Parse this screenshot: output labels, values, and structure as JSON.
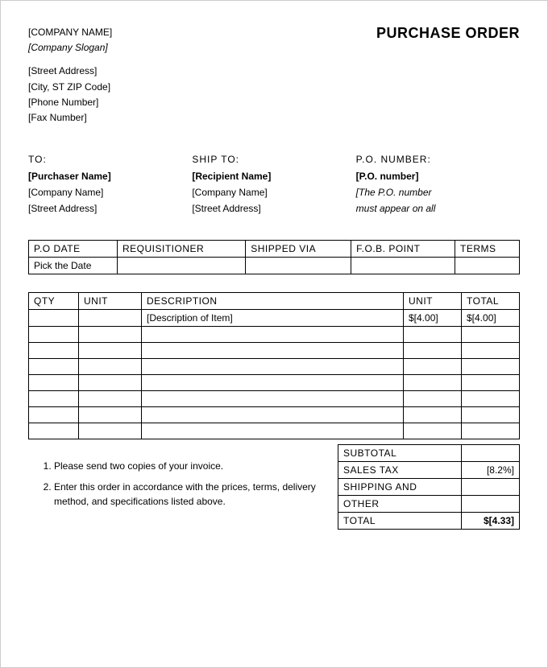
{
  "header": {
    "company_name": "[COMPANY NAME]",
    "slogan": "[Company Slogan]",
    "street": "[Street Address]",
    "city_st_zip": "[City, ST ZIP Code]",
    "phone": "[Phone Number]",
    "fax": "[Fax Number]",
    "title": "PURCHASE ORDER"
  },
  "to": {
    "label": "TO:",
    "name": "[Purchaser Name]",
    "company": "[Company Name]",
    "street": "[Street Address]"
  },
  "ship_to": {
    "label": "SHIP TO:",
    "name": "[Recipient Name]",
    "company": "[Company Name]",
    "street": "[Street Address]"
  },
  "po_number": {
    "label": "P.O. NUMBER:",
    "value": "[P.O. number]",
    "note1": "[The P.O. number",
    "note2": "must appear on all"
  },
  "meta": {
    "headers": {
      "date": "P.O DATE",
      "req": "REQUISITIONER",
      "shipped": "SHIPPED VIA",
      "fob": "F.O.B. POINT",
      "terms": "TERMS"
    },
    "values": {
      "date": "Pick the Date",
      "req": "",
      "shipped": "",
      "fob": "",
      "terms": ""
    }
  },
  "items": {
    "headers": {
      "qty": "QTY",
      "unit": "UNIT",
      "desc": "DESCRIPTION",
      "unitprice": "UNIT",
      "total": "TOTAL"
    },
    "rows": [
      {
        "qty": "",
        "unit": "",
        "desc": "[Description of Item]",
        "unitprice": "$[4.00]",
        "total": "$[4.00]"
      },
      {
        "qty": "",
        "unit": "",
        "desc": "",
        "unitprice": "",
        "total": ""
      },
      {
        "qty": "",
        "unit": "",
        "desc": "",
        "unitprice": "",
        "total": ""
      },
      {
        "qty": "",
        "unit": "",
        "desc": "",
        "unitprice": "",
        "total": ""
      },
      {
        "qty": "",
        "unit": "",
        "desc": "",
        "unitprice": "",
        "total": ""
      },
      {
        "qty": "",
        "unit": "",
        "desc": "",
        "unitprice": "",
        "total": ""
      },
      {
        "qty": "",
        "unit": "",
        "desc": "",
        "unitprice": "",
        "total": ""
      },
      {
        "qty": "",
        "unit": "",
        "desc": "",
        "unitprice": "",
        "total": ""
      }
    ]
  },
  "totals": {
    "subtotal_label": "SUBTOTAL",
    "subtotal_value": "",
    "tax_label": "SALES TAX",
    "tax_value": "[8.2%]",
    "shipping_label": "SHIPPING AND",
    "shipping_value": "",
    "other_label": "OTHER",
    "other_value": "",
    "total_label": "TOTAL",
    "total_value": "$[4.33]"
  },
  "notes": {
    "line1": "Please send two copies of your invoice.",
    "line2": "Enter this order in accordance with the prices, terms, delivery method, and specifications listed above."
  }
}
